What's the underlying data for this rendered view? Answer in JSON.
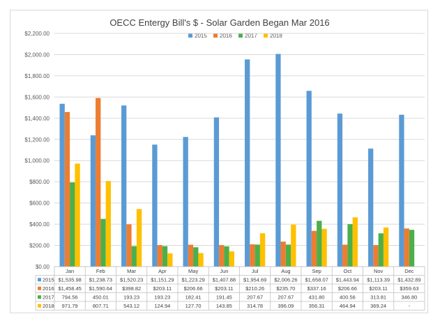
{
  "chart_data": {
    "type": "bar",
    "title": "OECC Entergy Bill's $ - Solar Garden Began Mar 2016",
    "xlabel": "",
    "ylabel": "",
    "ylim": [
      0,
      2200
    ],
    "yticks": [
      "$0.00",
      "$200.00",
      "$400.00",
      "$600.00",
      "$800.00",
      "$1,000.00",
      "$1,200.00",
      "$1,400.00",
      "$1,600.00",
      "$1,800.00",
      "$2,000.00",
      "$2,200.00"
    ],
    "categories": [
      "Jan",
      "Feb",
      "Mar",
      "Apr",
      "May",
      "Jun",
      "Jul",
      "Aug",
      "Sep",
      "Oct",
      "Nov",
      "Dec"
    ],
    "legend_position": "top",
    "grid": true,
    "series": [
      {
        "name": "2015",
        "color": "#5b9bd5",
        "values": [
          1535.98,
          1238.73,
          1520.23,
          1151.29,
          1223.29,
          1407.88,
          1954.69,
          2006.26,
          1658.07,
          1443.94,
          1113.39,
          1432.89
        ],
        "table": [
          "$1,535.98",
          "$1,238.73",
          "$1,520.23",
          "$1,151.29",
          "$1,223.29",
          "$1,407.88",
          "$1,954.69",
          "$2,006.26",
          "$1,658.07",
          "$1,443.94",
          "$1,113.39",
          "$1,432.89"
        ]
      },
      {
        "name": "2016",
        "color": "#ed7d31",
        "values": [
          1458.45,
          1590.64,
          398.82,
          203.11,
          206.66,
          203.11,
          210.26,
          235.7,
          337.16,
          206.66,
          203.11,
          359.63
        ],
        "table": [
          "$1,458.45",
          "$1,590.64",
          "$398.82",
          "$203.11",
          "$206.66",
          "$203.11",
          "$210.26",
          "$235.70",
          "$337.16",
          "$206.66",
          "$203.11",
          "$359.63"
        ]
      },
      {
        "name": "2017",
        "color": "#4daf4a",
        "values": [
          794.56,
          450.01,
          193.23,
          193.23,
          182.41,
          191.45,
          207.67,
          207.67,
          431.8,
          400.56,
          313.81,
          346.8
        ],
        "table": [
          "794.56",
          "450.01",
          "193.23",
          "193.23",
          "182.41",
          "191.45",
          "207.67",
          "207.67",
          "431.80",
          "400.56",
          "313.81",
          "346.80"
        ]
      },
      {
        "name": "2018",
        "color": "#ffc000",
        "values": [
          971.79,
          807.71,
          543.12,
          124.94,
          127.7,
          143.85,
          314.78,
          396.09,
          356.31,
          464.94,
          369.24,
          null
        ],
        "table": [
          "971.79",
          "807.71",
          "543.12",
          "124.94",
          "127.70",
          "143.85",
          "314.78",
          "396.09",
          "356.31",
          "464.94",
          "369.24",
          "-"
        ]
      }
    ]
  }
}
